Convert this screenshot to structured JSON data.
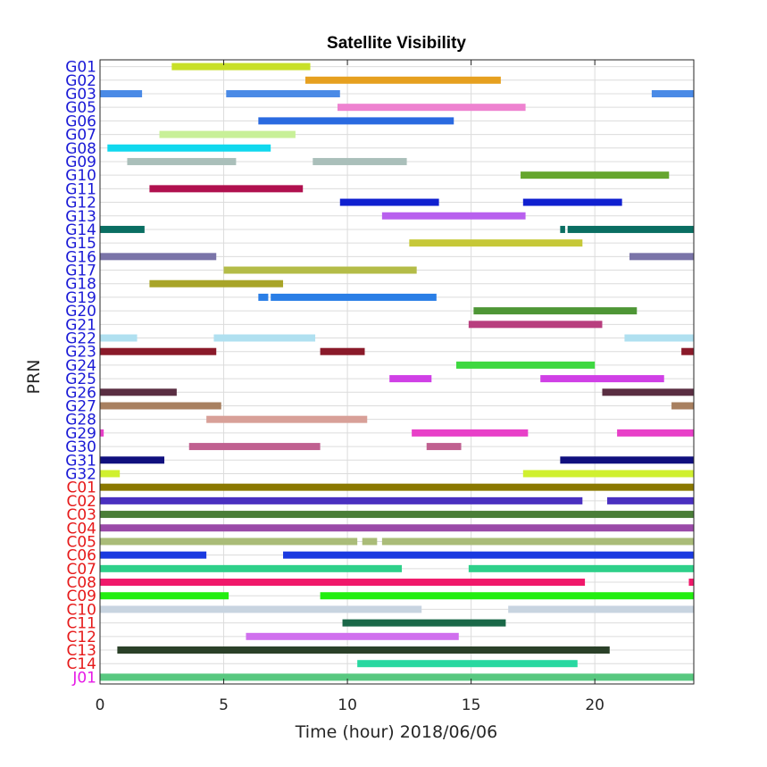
{
  "chart_data": {
    "type": "timeline",
    "title": "Satellite Visibility",
    "xlabel": "Time (hour)  2018/06/06",
    "ylabel": "PRN",
    "xlim": [
      0,
      24
    ],
    "xticks": [
      0,
      5,
      10,
      15,
      20
    ],
    "xtick_labels": [
      "0",
      "5",
      "10",
      "15",
      "20"
    ],
    "grid": true,
    "group_colors": {
      "G": "#1a1ad6",
      "C": "#e61a1a",
      "J": "#e61ae6"
    },
    "satellites": [
      {
        "prn": "G01",
        "color": "#c8e028",
        "intervals": [
          [
            2.9,
            8.5
          ]
        ]
      },
      {
        "prn": "G02",
        "color": "#e6a020",
        "intervals": [
          [
            8.3,
            16.2
          ]
        ]
      },
      {
        "prn": "G03",
        "color": "#4a8ae6",
        "intervals": [
          [
            0,
            1.7
          ],
          [
            5.1,
            9.7
          ],
          [
            22.3,
            24
          ]
        ]
      },
      {
        "prn": "G05",
        "color": "#ee82d0",
        "intervals": [
          [
            9.6,
            17.2
          ]
        ]
      },
      {
        "prn": "G06",
        "color": "#2a6ae0",
        "intervals": [
          [
            6.4,
            14.3
          ]
        ]
      },
      {
        "prn": "G07",
        "color": "#c8f098",
        "intervals": [
          [
            2.4,
            7.9
          ]
        ]
      },
      {
        "prn": "G08",
        "color": "#10d8ee",
        "intervals": [
          [
            0.3,
            6.9
          ]
        ]
      },
      {
        "prn": "G09",
        "color": "#aabfba",
        "intervals": [
          [
            1.1,
            5.5
          ],
          [
            8.6,
            12.4
          ]
        ]
      },
      {
        "prn": "G10",
        "color": "#66a62e",
        "intervals": [
          [
            17.0,
            23.0
          ]
        ]
      },
      {
        "prn": "G11",
        "color": "#b0104e",
        "intervals": [
          [
            2.0,
            8.2
          ]
        ]
      },
      {
        "prn": "G12",
        "color": "#1020d0",
        "intervals": [
          [
            9.7,
            13.7
          ],
          [
            17.1,
            21.1
          ]
        ]
      },
      {
        "prn": "G13",
        "color": "#b860ee",
        "intervals": [
          [
            11.4,
            17.2
          ]
        ]
      },
      {
        "prn": "G14",
        "color": "#0a6e62",
        "intervals": [
          [
            0,
            1.8
          ],
          [
            18.6,
            18.8
          ],
          [
            18.9,
            24
          ]
        ]
      },
      {
        "prn": "G15",
        "color": "#c6c838",
        "intervals": [
          [
            12.5,
            19.5
          ]
        ]
      },
      {
        "prn": "G16",
        "color": "#7a74a8",
        "intervals": [
          [
            0,
            4.7
          ],
          [
            21.4,
            24
          ]
        ]
      },
      {
        "prn": "G17",
        "color": "#b4bc48",
        "intervals": [
          [
            5.0,
            12.8
          ]
        ]
      },
      {
        "prn": "G18",
        "color": "#a8a428",
        "intervals": [
          [
            2.0,
            7.4
          ]
        ]
      },
      {
        "prn": "G19",
        "color": "#2a7ee6",
        "intervals": [
          [
            6.4,
            6.8
          ],
          [
            6.9,
            13.6
          ]
        ]
      },
      {
        "prn": "G20",
        "color": "#4e9636",
        "intervals": [
          [
            15.1,
            21.7
          ]
        ]
      },
      {
        "prn": "G21",
        "color": "#b83e7e",
        "intervals": [
          [
            14.9,
            20.3
          ]
        ]
      },
      {
        "prn": "G22",
        "color": "#b0e0f0",
        "intervals": [
          [
            0,
            1.5
          ],
          [
            4.6,
            8.7
          ],
          [
            21.2,
            24
          ]
        ]
      },
      {
        "prn": "G23",
        "color": "#8a1a2a",
        "intervals": [
          [
            0,
            4.7
          ],
          [
            8.9,
            10.7
          ],
          [
            23.5,
            24
          ]
        ]
      },
      {
        "prn": "G24",
        "color": "#3ed840",
        "intervals": [
          [
            14.4,
            20.0
          ]
        ]
      },
      {
        "prn": "G25",
        "color": "#d040e6",
        "intervals": [
          [
            11.7,
            13.4
          ],
          [
            17.8,
            22.8
          ]
        ]
      },
      {
        "prn": "G26",
        "color": "#5a2e42",
        "intervals": [
          [
            0,
            3.1
          ],
          [
            20.3,
            24
          ]
        ]
      },
      {
        "prn": "G27",
        "color": "#a88060",
        "intervals": [
          [
            0,
            4.9
          ],
          [
            23.1,
            24
          ]
        ]
      },
      {
        "prn": "G28",
        "color": "#d8a098",
        "intervals": [
          [
            4.3,
            10.8
          ]
        ]
      },
      {
        "prn": "G29",
        "color": "#e840c8",
        "intervals": [
          [
            0,
            0.15
          ],
          [
            12.6,
            17.3
          ],
          [
            20.9,
            24
          ]
        ]
      },
      {
        "prn": "G30",
        "color": "#c06090",
        "intervals": [
          [
            3.6,
            8.9
          ],
          [
            13.2,
            14.6
          ]
        ]
      },
      {
        "prn": "G31",
        "color": "#10107e",
        "intervals": [
          [
            0,
            2.6
          ],
          [
            18.6,
            24
          ]
        ]
      },
      {
        "prn": "G32",
        "color": "#d0f030",
        "intervals": [
          [
            0,
            0.8
          ],
          [
            17.1,
            24
          ]
        ]
      },
      {
        "prn": "C01",
        "color": "#8a7800",
        "intervals": [
          [
            0,
            24
          ]
        ]
      },
      {
        "prn": "C02",
        "color": "#4a30c0",
        "intervals": [
          [
            0,
            19.5
          ],
          [
            20.5,
            24
          ]
        ]
      },
      {
        "prn": "C03",
        "color": "#4a7e38",
        "intervals": [
          [
            0,
            24
          ]
        ]
      },
      {
        "prn": "C04",
        "color": "#9a4aa8",
        "intervals": [
          [
            0,
            24
          ]
        ]
      },
      {
        "prn": "C05",
        "color": "#aabc78",
        "intervals": [
          [
            0,
            10.4
          ],
          [
            10.6,
            11.2
          ],
          [
            11.4,
            24
          ]
        ]
      },
      {
        "prn": "C06",
        "color": "#1a3ae0",
        "intervals": [
          [
            0,
            4.3
          ],
          [
            7.4,
            24
          ]
        ]
      },
      {
        "prn": "C07",
        "color": "#2ed08a",
        "intervals": [
          [
            0,
            12.2
          ],
          [
            14.9,
            24
          ]
        ]
      },
      {
        "prn": "C08",
        "color": "#f0186a",
        "intervals": [
          [
            0,
            19.6
          ],
          [
            23.8,
            24
          ]
        ]
      },
      {
        "prn": "C09",
        "color": "#22ee10",
        "intervals": [
          [
            0,
            5.2
          ],
          [
            8.9,
            24
          ]
        ]
      },
      {
        "prn": "C10",
        "color": "#c8d4e0",
        "intervals": [
          [
            0,
            13.0
          ],
          [
            16.5,
            24
          ]
        ]
      },
      {
        "prn": "C11",
        "color": "#1a6848",
        "intervals": [
          [
            9.8,
            16.4
          ]
        ]
      },
      {
        "prn": "C12",
        "color": "#d070ee",
        "intervals": [
          [
            5.9,
            14.5
          ]
        ]
      },
      {
        "prn": "C13",
        "color": "#2a4028",
        "intervals": [
          [
            0.7,
            20.6
          ]
        ]
      },
      {
        "prn": "C14",
        "color": "#28d8a0",
        "intervals": [
          [
            10.4,
            19.3
          ]
        ]
      },
      {
        "prn": "J01",
        "color": "#58c880",
        "intervals": [
          [
            0,
            24
          ]
        ]
      }
    ]
  }
}
